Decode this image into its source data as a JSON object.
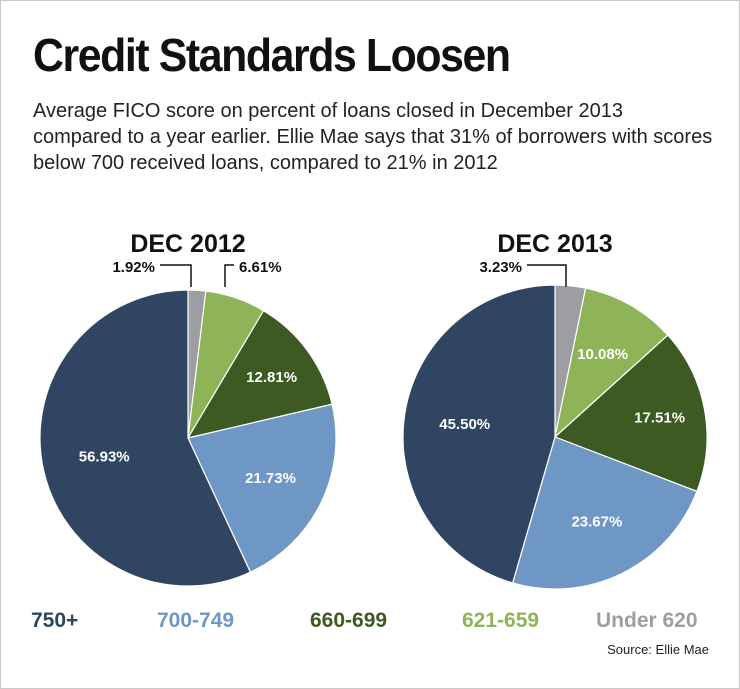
{
  "title": "Credit Standards Loosen",
  "subtitle": "Average FICO score on percent of loans closed in December 2013 compared to a year earlier. Ellie Mae says that 31% of borrowers with scores below 700 received loans, compared to 21% in 2012",
  "source": "Source: Ellie Mae",
  "colors": {
    "750+": "#2f4562",
    "700-749": "#6f97c6",
    "660-699": "#3d5a22",
    "621-659": "#8eb457",
    "Under 620": "#9c9ea1"
  },
  "legend": [
    "750+",
    "700-749",
    "660-699",
    "621-659",
    "Under 620"
  ],
  "chart_data": [
    {
      "type": "pie",
      "title": "DEC 2012",
      "categories": [
        "Under 620",
        "621-659",
        "660-699",
        "700-749",
        "750+"
      ],
      "values": [
        1.92,
        6.61,
        12.81,
        21.73,
        56.93
      ],
      "labels": [
        "1.92%",
        "6.61%",
        "12.81%",
        "21.73%",
        "56.93%"
      ]
    },
    {
      "type": "pie",
      "title": "DEC 2013",
      "categories": [
        "Under 620",
        "621-659",
        "660-699",
        "700-749",
        "750+"
      ],
      "values": [
        3.23,
        10.08,
        17.51,
        23.67,
        45.5
      ],
      "labels": [
        "3.23%",
        "10.08%",
        "17.51%",
        "23.67%",
        "45.50%"
      ]
    }
  ]
}
